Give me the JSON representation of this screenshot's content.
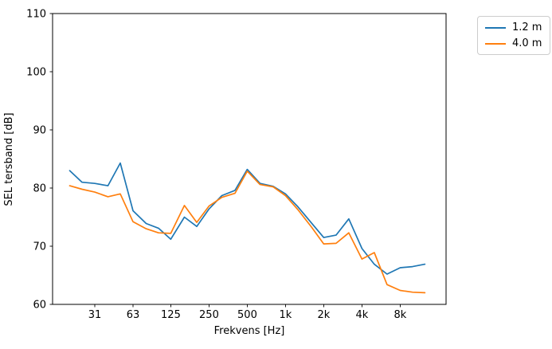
{
  "chart_data": {
    "type": "line",
    "title": "",
    "xlabel": "Frekvens [Hz]",
    "ylabel": "SEL tersband [dB]",
    "x_scale": "log",
    "ylim": [
      60,
      110
    ],
    "yticks": [
      60,
      70,
      80,
      90,
      100,
      110
    ],
    "xticks": [
      {
        "value": 31.5,
        "label": "31"
      },
      {
        "value": 63,
        "label": "63"
      },
      {
        "value": 125,
        "label": "125"
      },
      {
        "value": 250,
        "label": "250"
      },
      {
        "value": 500,
        "label": "500"
      },
      {
        "value": 1000,
        "label": "1k"
      },
      {
        "value": 2000,
        "label": "2k"
      },
      {
        "value": 4000,
        "label": "4k"
      },
      {
        "value": 8000,
        "label": "8k"
      }
    ],
    "x": [
      20,
      25,
      31.5,
      40,
      50,
      63,
      80,
      100,
      125,
      160,
      200,
      250,
      315,
      400,
      500,
      630,
      800,
      1000,
      1250,
      1600,
      2000,
      2500,
      3150,
      4000,
      5000,
      6300,
      8000,
      10000,
      12500
    ],
    "series": [
      {
        "name": "1.2 m",
        "color": "#1f77b4",
        "values": [
          83.0,
          81.0,
          80.8,
          80.4,
          84.3,
          76.1,
          73.9,
          73.1,
          71.2,
          75.0,
          73.4,
          76.4,
          78.7,
          79.6,
          83.2,
          80.8,
          80.3,
          79.0,
          76.8,
          74.0,
          71.5,
          71.9,
          74.7,
          69.6,
          66.9,
          65.2,
          66.3,
          66.5,
          66.9
        ]
      },
      {
        "name": "4.0 m",
        "color": "#ff7f0e",
        "values": [
          80.4,
          79.8,
          79.3,
          78.5,
          79.0,
          74.2,
          73.0,
          72.3,
          72.2,
          77.0,
          74.1,
          76.9,
          78.4,
          79.1,
          82.9,
          80.6,
          80.2,
          78.7,
          76.3,
          73.3,
          70.4,
          70.5,
          72.3,
          67.8,
          68.9,
          63.4,
          62.4,
          62.1,
          62.0
        ]
      }
    ],
    "legend_position": "outside-top-right",
    "grid": false,
    "axis_color": "#000000",
    "background_color": "#ffffff"
  }
}
